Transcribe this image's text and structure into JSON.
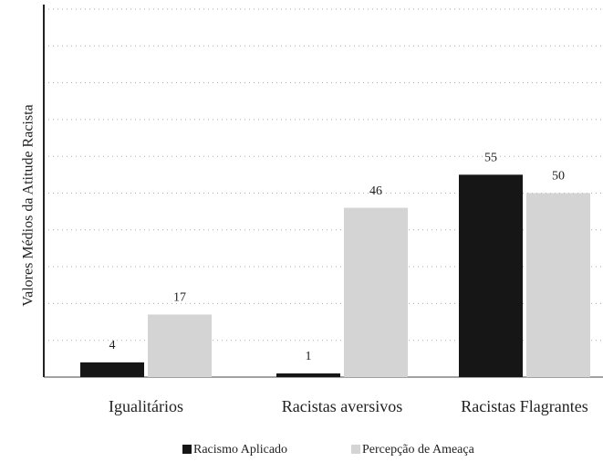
{
  "chart_data": {
    "type": "bar",
    "ylabel": "Valores Médios da Atitude Racista",
    "categories": [
      "Igualitários",
      "Racistas aversivos",
      "Racistas Flagrantes"
    ],
    "series": [
      {
        "name": "Racismo Aplicado",
        "color": "#161616",
        "values": [
          4,
          1,
          55
        ]
      },
      {
        "name": "Percepção de Ameaça",
        "color": "#d4d4d4",
        "values": [
          17,
          46,
          50
        ]
      }
    ],
    "ylim": [
      0,
      100
    ],
    "yticks": [
      0,
      10,
      20,
      30,
      40,
      50,
      60,
      70,
      80,
      90,
      100
    ],
    "grid": true,
    "legend": "bottom"
  }
}
